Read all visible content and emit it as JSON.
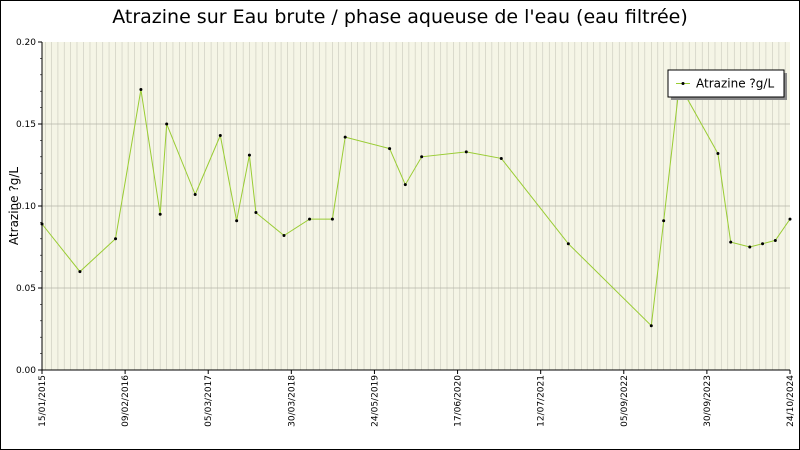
{
  "chart_data": {
    "type": "line",
    "title": "Atrazine sur Eau brute / phase aqueuse de l'eau (eau filtrée)",
    "ylabel": "Atrazine ?g/L",
    "xlabel": "",
    "ylim": [
      0,
      0.2
    ],
    "y_ticks": [
      "0.00",
      "0.05",
      "0.10",
      "0.15",
      "0.20"
    ],
    "x_range": [
      "2015-01-15",
      "2024-10-24"
    ],
    "x_tick_labels": [
      "15/01/2015",
      "09/02/2016",
      "05/03/2017",
      "30/03/2018",
      "24/05/2019",
      "17/06/2020",
      "12/07/2021",
      "05/09/2022",
      "30/09/2023",
      "24/10/2024"
    ],
    "grid": true,
    "legend": "top-right",
    "line_color": "#99cc33",
    "marker_color": "#000000",
    "background_color": "#f5f5e6",
    "series": [
      {
        "name": "Atrazine ?g/L",
        "points": [
          [
            "2015-01-15",
            0.089
          ],
          [
            "2015-07-15",
            0.06
          ],
          [
            "2016-01-01",
            0.08
          ],
          [
            "2016-05-01",
            0.171
          ],
          [
            "2016-08-01",
            0.095
          ],
          [
            "2016-09-01",
            0.15
          ],
          [
            "2017-01-15",
            0.107
          ],
          [
            "2017-05-15",
            0.143
          ],
          [
            "2017-08-01",
            0.091
          ],
          [
            "2017-10-01",
            0.131
          ],
          [
            "2017-11-01",
            0.096
          ],
          [
            "2018-03-15",
            0.082
          ],
          [
            "2018-07-15",
            0.092
          ],
          [
            "2018-11-01",
            0.092
          ],
          [
            "2019-01-01",
            0.142
          ],
          [
            "2019-08-01",
            0.135
          ],
          [
            "2019-10-15",
            0.113
          ],
          [
            "2020-01-01",
            0.13
          ],
          [
            "2020-08-01",
            0.133
          ],
          [
            "2021-01-15",
            0.129
          ],
          [
            "2021-12-01",
            0.077
          ],
          [
            "2023-01-01",
            0.027
          ],
          [
            "2023-03-01",
            0.091
          ],
          [
            "2023-05-15",
            0.174
          ],
          [
            "2023-11-15",
            0.132
          ],
          [
            "2024-01-15",
            0.078
          ],
          [
            "2024-04-15",
            0.075
          ],
          [
            "2024-06-15",
            0.077
          ],
          [
            "2024-08-15",
            0.079
          ],
          [
            "2024-10-24",
            0.092
          ]
        ]
      }
    ]
  }
}
